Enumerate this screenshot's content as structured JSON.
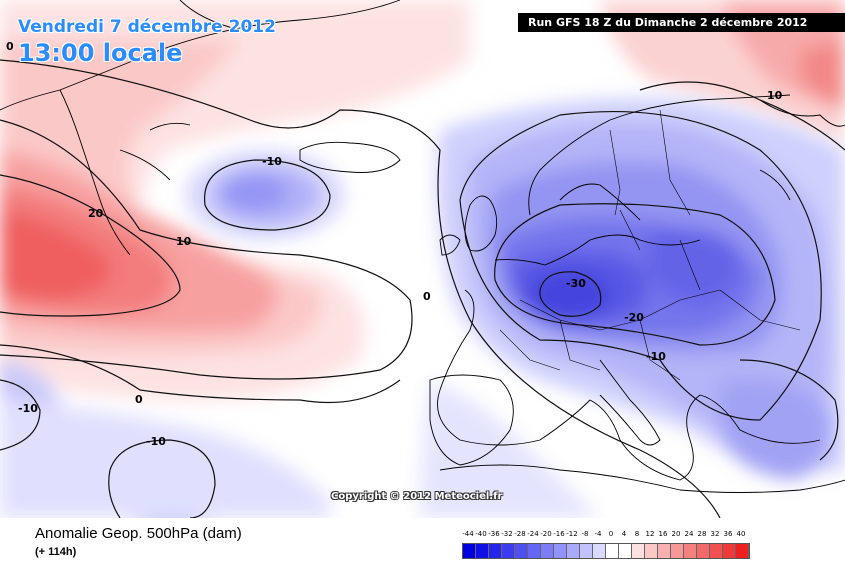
{
  "header": {
    "date": "Vendredi 7 décembre 2012",
    "time": "13:00 locale",
    "run": "Run GFS 18 Z du Dimanche 2 décembre 2012"
  },
  "copyright": "Copyright © 2012 Meteociel.fr",
  "footer": {
    "variable": "Anomalie Geop. 500hPa (dam)",
    "lead": "(+ 114h)"
  },
  "legend": {
    "ticks": [
      "-44",
      "-40",
      "-36",
      "-32",
      "-28",
      "-24",
      "-20",
      "-16",
      "-12",
      "-8",
      "-4",
      "0",
      "4",
      "8",
      "12",
      "16",
      "20",
      "24",
      "28",
      "32",
      "36",
      "40"
    ],
    "colors": [
      "#0000e0",
      "#1010e6",
      "#2424ea",
      "#3c3cee",
      "#5050f2",
      "#6666f4",
      "#7c7cf6",
      "#9292f8",
      "#aaaafa",
      "#c2c2fc",
      "#dadafe",
      "#ffffff",
      "#ffffff",
      "#fde0e0",
      "#fbc8c8",
      "#f9b0b0",
      "#f79898",
      "#f58080",
      "#f36868",
      "#f15050",
      "#ef3838",
      "#ed2020"
    ]
  },
  "map": {
    "contour_labels": [
      {
        "text": "-10",
        "where": "iceland-low"
      },
      {
        "text": "20",
        "where": "greenland-high"
      },
      {
        "text": "10",
        "where": "greenland-high-edge"
      },
      {
        "text": "0",
        "where": "bay-of-biscay"
      },
      {
        "text": "0",
        "where": "atlantic-south"
      },
      {
        "text": "0",
        "where": "top-left-corner"
      },
      {
        "text": "-10",
        "where": "atlantic-west"
      },
      {
        "text": "-10",
        "where": "atlantic-southwest"
      },
      {
        "text": "-30",
        "where": "central-europe-low"
      },
      {
        "text": "-20",
        "where": "eastern-europe"
      },
      {
        "text": "-10",
        "where": "balkans"
      },
      {
        "text": "10",
        "where": "northeast-corner"
      }
    ]
  }
}
